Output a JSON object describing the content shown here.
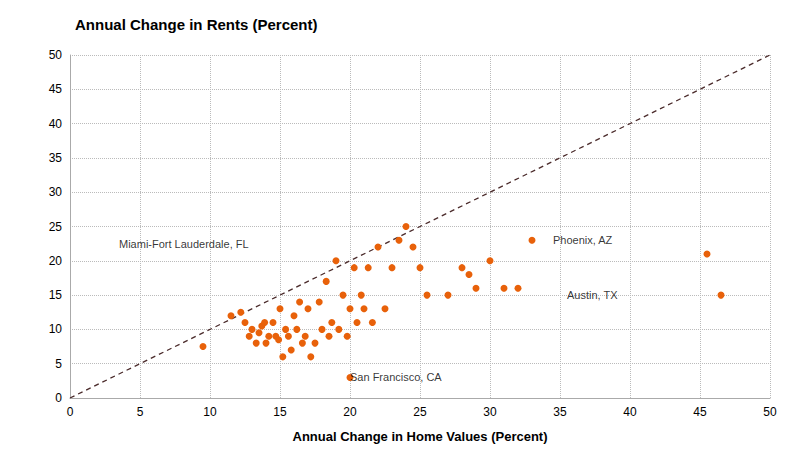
{
  "chart_data": {
    "type": "scatter",
    "title": "Annual Change in Rents (Percent)",
    "xlabel": "Annual Change in Home Values (Percent)",
    "xlim": [
      0,
      50
    ],
    "ylim": [
      0,
      50
    ],
    "xticks": [
      0,
      5,
      10,
      15,
      20,
      25,
      30,
      35,
      40,
      45,
      50
    ],
    "yticks": [
      0,
      5,
      10,
      15,
      20,
      25,
      30,
      35,
      40,
      45,
      50
    ],
    "grid": true,
    "color": "#E8610A",
    "x": [
      9.5,
      11.5,
      12.5,
      12.2,
      12.8,
      13.0,
      13.3,
      13.5,
      13.7,
      13.9,
      14.0,
      14.2,
      14.5,
      14.7,
      14.9,
      15.0,
      15.2,
      15.4,
      15.6,
      15.8,
      16.0,
      16.2,
      16.4,
      16.6,
      16.8,
      17.0,
      17.2,
      17.5,
      17.8,
      18.0,
      18.3,
      18.5,
      18.7,
      19.0,
      19.2,
      19.5,
      19.8,
      20.0,
      20.3,
      20.5,
      20.8,
      21.0,
      21.3,
      21.6,
      22.0,
      22.5,
      23.0,
      23.5,
      24.0,
      24.5,
      25.0,
      25.5,
      27.0,
      28.0,
      28.5,
      29.0,
      30.0,
      31.0,
      32.0,
      20.0,
      33.0,
      45.5,
      46.5
    ],
    "values": [
      7.5,
      12.0,
      11.0,
      12.5,
      9.0,
      10.0,
      8.0,
      9.5,
      10.5,
      11.0,
      8.0,
      9.0,
      11.0,
      9.0,
      8.5,
      13.0,
      6.0,
      10.0,
      9.0,
      7.0,
      12.0,
      10.0,
      14.0,
      8.0,
      9.0,
      13.0,
      6.0,
      8.0,
      14.0,
      10.0,
      17.0,
      9.0,
      11.0,
      20.0,
      10.0,
      15.0,
      9.0,
      13.0,
      19.0,
      11.0,
      15.0,
      13.0,
      19.0,
      11.0,
      22.0,
      13.0,
      19.0,
      23.0,
      25.0,
      22.0,
      19.0,
      15.0,
      15.0,
      19.0,
      18.0,
      16.0,
      20.0,
      16.0,
      16.0,
      3.0,
      23.0,
      21.0,
      15.0
    ],
    "lines": [
      {
        "x": [
          0,
          50
        ],
        "y": [
          0,
          50
        ],
        "color": "#4a2a2a",
        "line_style": "dashed"
      }
    ],
    "annotations": [
      {
        "text": "Miami-Fort Lauderdale, FL",
        "x": 3.5,
        "y": 22.5
      },
      {
        "text": "Phoenix, AZ",
        "x": 34.5,
        "y": 23.0
      },
      {
        "text": "San Francisco, CA",
        "x": 20.0,
        "y": 3.0
      },
      {
        "text": "Austin, TX",
        "x": 35.5,
        "y": 15.0
      }
    ]
  }
}
